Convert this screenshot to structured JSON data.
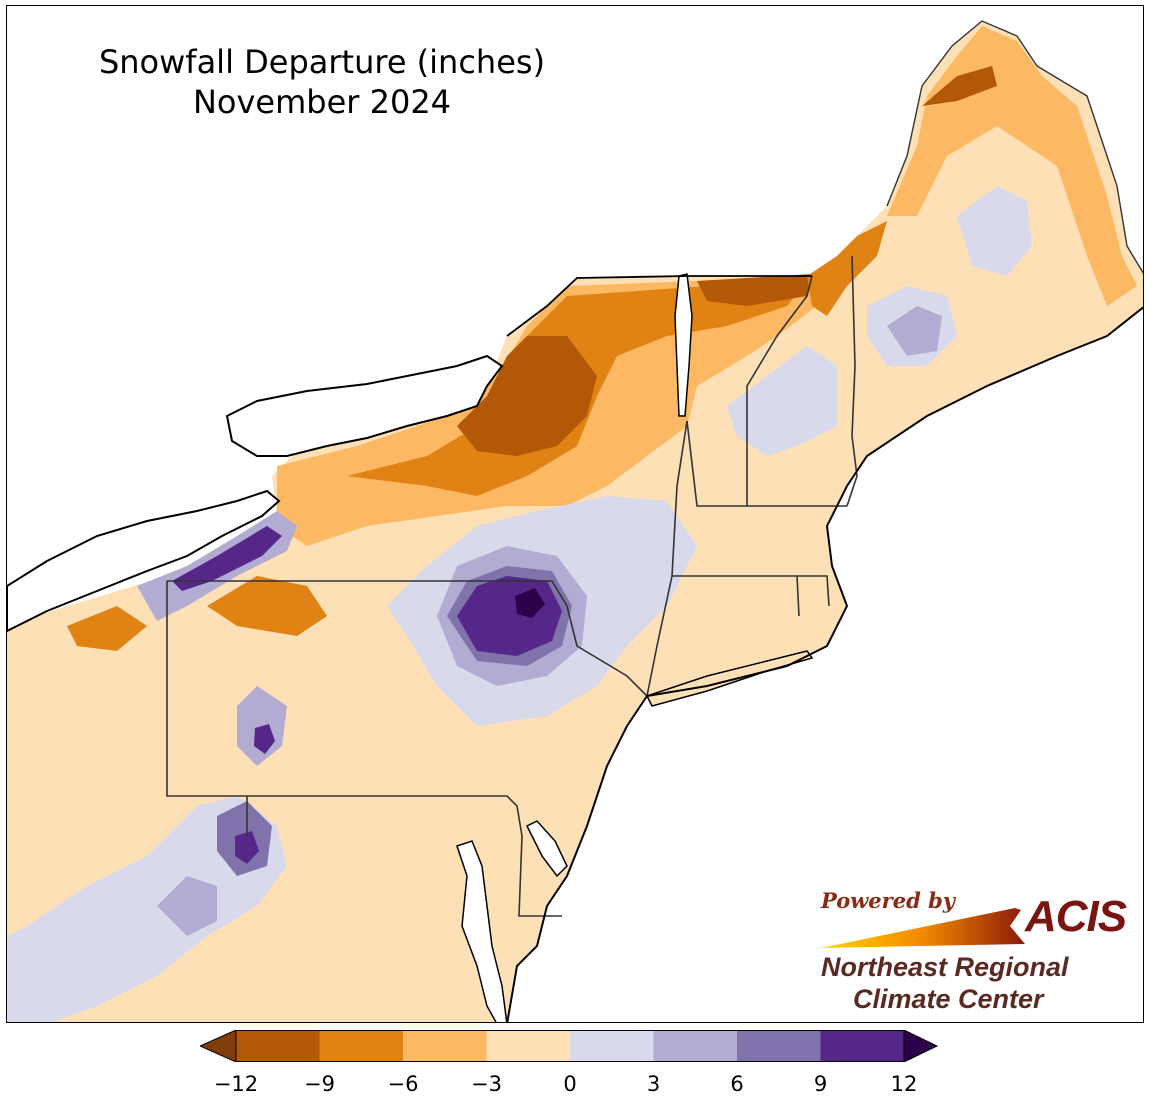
{
  "title": {
    "line1": "Snowfall Departure (inches)",
    "line2": "November 2024"
  },
  "credit": {
    "powered_by": "Powered by",
    "acis": "ACIS",
    "org_line1": "Northeast Regional",
    "org_line2": "Climate Center"
  },
  "legend": {
    "ticks": [
      "−12",
      "−9",
      "−6",
      "−3",
      "0",
      "3",
      "6",
      "9",
      "12"
    ],
    "bins": [
      {
        "range": [
          -12,
          -9
        ],
        "color": "#b35806"
      },
      {
        "range": [
          -9,
          -6
        ],
        "color": "#e08214"
      },
      {
        "range": [
          -6,
          -3
        ],
        "color": "#fdb863"
      },
      {
        "range": [
          -3,
          0
        ],
        "color": "#fee0b6"
      },
      {
        "range": [
          0,
          3
        ],
        "color": "#d8daeb"
      },
      {
        "range": [
          3,
          6
        ],
        "color": "#b2abd2"
      },
      {
        "range": [
          6,
          9
        ],
        "color": "#8073ac"
      },
      {
        "range": [
          9,
          12
        ],
        "color": "#542788"
      }
    ],
    "under_color": "#7f3b08",
    "over_color": "#2d004b"
  },
  "colors": {
    "land_default": "#fee0b6",
    "water": "#ffffff",
    "state_border": "#333333",
    "county_border": "#b8a78a"
  }
}
